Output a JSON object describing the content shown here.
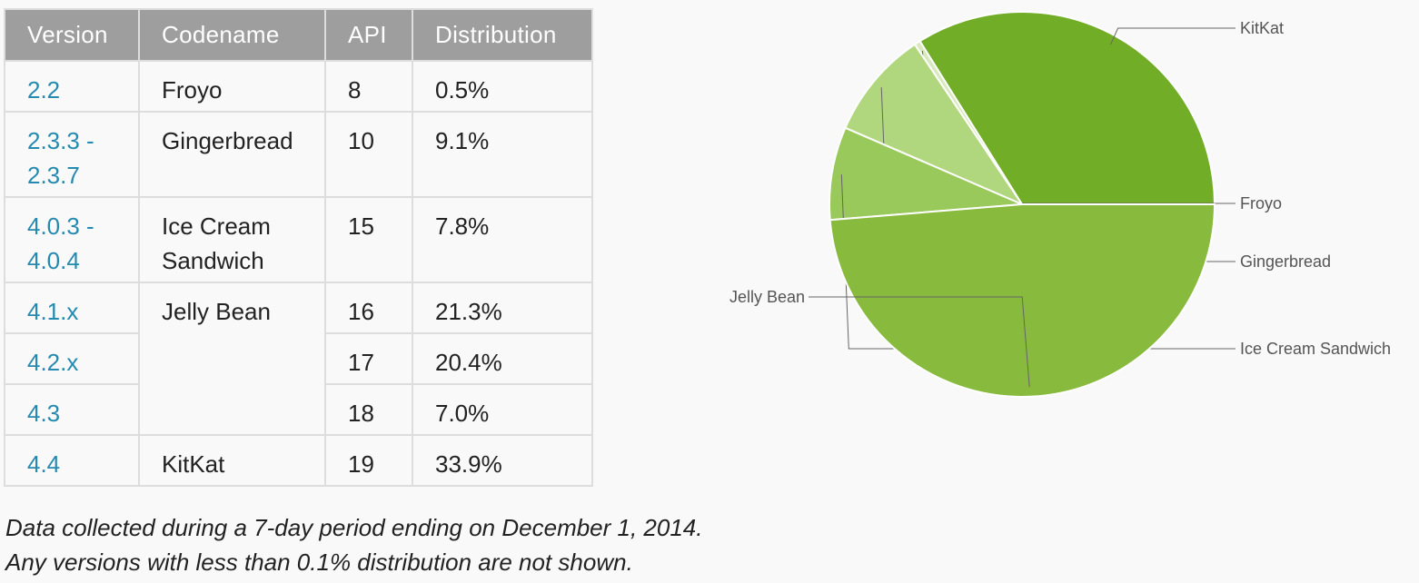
{
  "table": {
    "headers": [
      "Version",
      "Codename",
      "API",
      "Distribution"
    ],
    "rows": [
      {
        "version": [
          "2.2"
        ],
        "codename": "Froyo",
        "api": "8",
        "distribution": "0.5%"
      },
      {
        "version": [
          "2.3.3 -",
          "2.3.7"
        ],
        "codename": "Gingerbread",
        "api": "10",
        "distribution": "9.1%"
      },
      {
        "version": [
          "4.0.3 -",
          "4.0.4"
        ],
        "codename": "Ice Cream Sandwich",
        "api": "15",
        "distribution": "7.8%"
      },
      {
        "version": [
          "4.1.x"
        ],
        "codename": "Jelly Bean",
        "api": "16",
        "distribution": "21.3%"
      },
      {
        "version": [
          "4.2.x"
        ],
        "codename": "",
        "api": "17",
        "distribution": "20.4%"
      },
      {
        "version": [
          "4.3"
        ],
        "codename": "",
        "api": "18",
        "distribution": "7.0%"
      },
      {
        "version": [
          "4.4"
        ],
        "codename": "KitKat",
        "api": "19",
        "distribution": "33.9%"
      }
    ]
  },
  "footnote": {
    "line1": "Data collected during a 7-day period ending on December 1, 2014.",
    "line2": "Any versions with less than 0.1% distribution are not shown."
  },
  "chart_data": {
    "type": "pie",
    "slices": [
      {
        "label": "KitKat",
        "value": 33.9,
        "color": "#71ad26"
      },
      {
        "label": "Froyo",
        "value": 0.5,
        "color": "#d8e9bf"
      },
      {
        "label": "Gingerbread",
        "value": 9.1,
        "color": "#b1d77e"
      },
      {
        "label": "Ice Cream Sandwich",
        "value": 7.8,
        "color": "#99c95a"
      },
      {
        "label": "Jelly Bean",
        "value": 48.7,
        "color": "#87ba3d"
      }
    ],
    "start_angle_deg": 0,
    "direction": "counterclockwise",
    "legend": "callout-labels"
  }
}
